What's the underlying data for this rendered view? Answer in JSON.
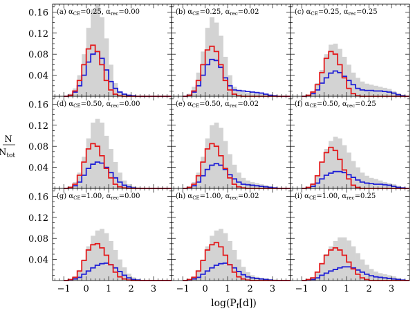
{
  "chart_data": {
    "type": "bar",
    "description_layout": "3x3 grid of step histograms",
    "xlabel": "log(P_f[d])",
    "xlabel_main": "log(P",
    "xlabel_sub": "f",
    "xlabel_end": "[d])",
    "ylabel_num": "N",
    "ylabel_den": "N",
    "ylabel_den_sub": "tot",
    "xlim": [
      -1.5,
      3.8
    ],
    "ylim": [
      0,
      0.175
    ],
    "bin_width": 0.2,
    "bin_edges_start": -1.0,
    "x_ticks": [
      -1,
      0,
      1,
      2,
      3
    ],
    "x_tick_labels": [
      "−1",
      "0",
      "1",
      "2",
      "3"
    ],
    "y_ticks": [
      0.04,
      0.08,
      0.12,
      0.16
    ],
    "y_tick_labels": [
      "0.04",
      "0.08",
      "0.12",
      "0.16"
    ],
    "series_colors": {
      "gray": "#d3d3d3",
      "red": "#e31a1c",
      "blue": "#1f1fd6"
    },
    "panels": [
      {
        "id": "a",
        "label": "(a)",
        "ace": "0.25",
        "arec": "0.00",
        "gray": [
          0.0,
          0.005,
          0.015,
          0.04,
          0.08,
          0.13,
          0.165,
          0.175,
          0.15,
          0.11,
          0.06,
          0.025,
          0.01,
          0.005,
          0.002,
          0.0,
          0,
          0,
          0,
          0,
          0,
          0,
          0,
          0
        ],
        "red": [
          0.0,
          0.002,
          0.01,
          0.03,
          0.06,
          0.09,
          0.097,
          0.085,
          0.06,
          0.03,
          0.012,
          0.004,
          0.001,
          0.0,
          0,
          0,
          0,
          0,
          0,
          0,
          0,
          0,
          0,
          0
        ],
        "blue": [
          0.0,
          0.002,
          0.008,
          0.02,
          0.04,
          0.065,
          0.08,
          0.085,
          0.072,
          0.05,
          0.028,
          0.015,
          0.008,
          0.004,
          0.002,
          0.001,
          0,
          0,
          0,
          0,
          0,
          0,
          0,
          0
        ]
      },
      {
        "id": "b",
        "label": "(b)",
        "ace": "0.25",
        "arec": "0.02",
        "gray": [
          0.0,
          0.005,
          0.018,
          0.045,
          0.085,
          0.13,
          0.15,
          0.14,
          0.115,
          0.075,
          0.04,
          0.018,
          0.01,
          0.008,
          0.007,
          0.006,
          0.005,
          0.004,
          0.003,
          0.002,
          0.001,
          0,
          0,
          0
        ],
        "red": [
          0.0,
          0.002,
          0.01,
          0.03,
          0.06,
          0.088,
          0.095,
          0.085,
          0.06,
          0.03,
          0.012,
          0.004,
          0.001,
          0,
          0,
          0,
          0,
          0,
          0,
          0,
          0,
          0,
          0,
          0
        ],
        "blue": [
          0.0,
          0.002,
          0.008,
          0.02,
          0.04,
          0.06,
          0.07,
          0.068,
          0.055,
          0.035,
          0.02,
          0.012,
          0.011,
          0.01,
          0.009,
          0.008,
          0.007,
          0.006,
          0.004,
          0.002,
          0.001,
          0,
          0,
          0
        ]
      },
      {
        "id": "c",
        "label": "(c)",
        "ace": "0.25",
        "arec": "0.25",
        "gray": [
          0.0,
          0.003,
          0.01,
          0.025,
          0.05,
          0.08,
          0.098,
          0.1,
          0.09,
          0.075,
          0.06,
          0.045,
          0.035,
          0.028,
          0.024,
          0.022,
          0.02,
          0.018,
          0.016,
          0.014,
          0.01,
          0.006,
          0.003,
          0.001
        ],
        "red": [
          0.0,
          0.002,
          0.008,
          0.022,
          0.045,
          0.072,
          0.085,
          0.08,
          0.06,
          0.035,
          0.015,
          0.005,
          0.001,
          0,
          0,
          0,
          0,
          0,
          0,
          0,
          0,
          0,
          0,
          0
        ],
        "blue": [
          0.0,
          0.001,
          0.005,
          0.012,
          0.025,
          0.035,
          0.044,
          0.048,
          0.045,
          0.038,
          0.03,
          0.022,
          0.015,
          0.012,
          0.011,
          0.011,
          0.01,
          0.01,
          0.009,
          0.008,
          0.006,
          0.003,
          0.001,
          0
        ]
      },
      {
        "id": "d",
        "label": "(d)",
        "ace": "0.50",
        "arec": "0.00",
        "gray": [
          0.0,
          0.004,
          0.012,
          0.03,
          0.06,
          0.095,
          0.125,
          0.132,
          0.125,
          0.1,
          0.075,
          0.05,
          0.03,
          0.015,
          0.008,
          0.004,
          0.002,
          0,
          0,
          0,
          0,
          0,
          0,
          0
        ],
        "red": [
          0.0,
          0.002,
          0.008,
          0.025,
          0.05,
          0.075,
          0.085,
          0.08,
          0.062,
          0.038,
          0.02,
          0.008,
          0.003,
          0.001,
          0,
          0,
          0,
          0,
          0,
          0,
          0,
          0,
          0,
          0
        ],
        "blue": [
          0.0,
          0.001,
          0.005,
          0.012,
          0.025,
          0.038,
          0.046,
          0.05,
          0.048,
          0.04,
          0.03,
          0.02,
          0.012,
          0.006,
          0.003,
          0.001,
          0,
          0,
          0,
          0,
          0,
          0,
          0,
          0
        ]
      },
      {
        "id": "e",
        "label": "(e)",
        "ace": "0.50",
        "arec": "0.02",
        "gray": [
          0.0,
          0.004,
          0.012,
          0.03,
          0.06,
          0.095,
          0.12,
          0.125,
          0.115,
          0.09,
          0.065,
          0.045,
          0.03,
          0.02,
          0.015,
          0.012,
          0.01,
          0.008,
          0.006,
          0.004,
          0.002,
          0,
          0,
          0
        ],
        "red": [
          0.0,
          0.002,
          0.008,
          0.024,
          0.05,
          0.075,
          0.085,
          0.08,
          0.062,
          0.038,
          0.02,
          0.008,
          0.003,
          0.001,
          0,
          0,
          0,
          0,
          0,
          0,
          0,
          0,
          0,
          0
        ],
        "blue": [
          0.0,
          0.001,
          0.005,
          0.012,
          0.024,
          0.036,
          0.044,
          0.047,
          0.044,
          0.036,
          0.026,
          0.018,
          0.012,
          0.008,
          0.007,
          0.006,
          0.005,
          0.004,
          0.003,
          0.002,
          0.001,
          0,
          0,
          0
        ]
      },
      {
        "id": "f",
        "label": "(f)",
        "ace": "0.50",
        "arec": "0.25",
        "gray": [
          0.0,
          0.003,
          0.01,
          0.025,
          0.05,
          0.075,
          0.09,
          0.098,
          0.095,
          0.082,
          0.068,
          0.052,
          0.04,
          0.03,
          0.024,
          0.02,
          0.018,
          0.015,
          0.012,
          0.01,
          0.008,
          0.005,
          0.002,
          0.001
        ],
        "red": [
          0.0,
          0.002,
          0.008,
          0.024,
          0.05,
          0.068,
          0.078,
          0.072,
          0.055,
          0.035,
          0.018,
          0.006,
          0.002,
          0,
          0,
          0,
          0,
          0,
          0,
          0,
          0,
          0,
          0,
          0
        ],
        "blue": [
          0.0,
          0.001,
          0.004,
          0.01,
          0.018,
          0.025,
          0.029,
          0.032,
          0.032,
          0.03,
          0.026,
          0.021,
          0.016,
          0.012,
          0.01,
          0.009,
          0.008,
          0.008,
          0.007,
          0.006,
          0.004,
          0.002,
          0.001,
          0
        ]
      },
      {
        "id": "g",
        "label": "(g)",
        "ace": "1.00",
        "arec": "0.00",
        "gray": [
          0.0,
          0.003,
          0.008,
          0.02,
          0.04,
          0.065,
          0.085,
          0.095,
          0.098,
          0.09,
          0.075,
          0.058,
          0.04,
          0.025,
          0.013,
          0.006,
          0.003,
          0.001,
          0,
          0,
          0,
          0,
          0,
          0
        ],
        "red": [
          0.0,
          0.002,
          0.006,
          0.018,
          0.038,
          0.058,
          0.068,
          0.07,
          0.062,
          0.048,
          0.03,
          0.016,
          0.007,
          0.003,
          0.001,
          0,
          0,
          0,
          0,
          0,
          0,
          0,
          0,
          0
        ],
        "blue": [
          0.0,
          0.001,
          0.003,
          0.006,
          0.012,
          0.018,
          0.024,
          0.029,
          0.032,
          0.033,
          0.03,
          0.024,
          0.017,
          0.01,
          0.005,
          0.002,
          0.001,
          0,
          0,
          0,
          0,
          0,
          0,
          0
        ]
      },
      {
        "id": "h",
        "label": "(h)",
        "ace": "1.00",
        "arec": "0.02",
        "gray": [
          0.0,
          0.003,
          0.008,
          0.02,
          0.04,
          0.065,
          0.085,
          0.095,
          0.098,
          0.09,
          0.075,
          0.058,
          0.04,
          0.026,
          0.016,
          0.01,
          0.007,
          0.005,
          0.004,
          0.003,
          0.002,
          0.001,
          0,
          0
        ],
        "red": [
          0.0,
          0.002,
          0.006,
          0.018,
          0.038,
          0.058,
          0.068,
          0.072,
          0.064,
          0.048,
          0.03,
          0.016,
          0.007,
          0.003,
          0.001,
          0,
          0,
          0,
          0,
          0,
          0,
          0,
          0,
          0
        ],
        "blue": [
          0.0,
          0.001,
          0.003,
          0.006,
          0.012,
          0.018,
          0.024,
          0.029,
          0.032,
          0.033,
          0.03,
          0.024,
          0.017,
          0.011,
          0.007,
          0.005,
          0.004,
          0.003,
          0.002,
          0.001,
          0,
          0,
          0,
          0
        ]
      },
      {
        "id": "i",
        "label": "(i)",
        "ace": "1.00",
        "arec": "0.25",
        "gray": [
          0.0,
          0.002,
          0.006,
          0.016,
          0.032,
          0.05,
          0.065,
          0.075,
          0.082,
          0.082,
          0.076,
          0.065,
          0.052,
          0.04,
          0.03,
          0.022,
          0.017,
          0.014,
          0.012,
          0.01,
          0.008,
          0.005,
          0.002,
          0.001
        ],
        "red": [
          0.0,
          0.002,
          0.005,
          0.016,
          0.032,
          0.048,
          0.058,
          0.062,
          0.058,
          0.048,
          0.035,
          0.022,
          0.012,
          0.005,
          0.002,
          0,
          0,
          0,
          0,
          0,
          0,
          0,
          0,
          0
        ],
        "blue": [
          0.0,
          0.001,
          0.002,
          0.005,
          0.01,
          0.014,
          0.018,
          0.021,
          0.024,
          0.026,
          0.026,
          0.024,
          0.02,
          0.016,
          0.012,
          0.009,
          0.007,
          0.006,
          0.005,
          0.004,
          0.003,
          0.002,
          0.001,
          0
        ]
      }
    ]
  }
}
